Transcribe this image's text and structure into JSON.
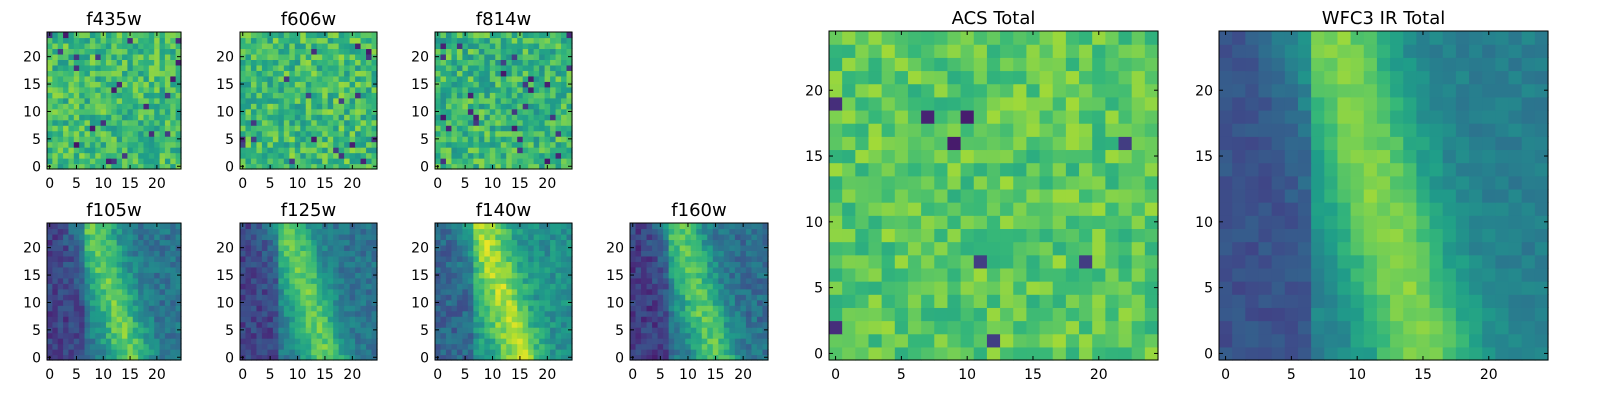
{
  "figure": {
    "colormap": "viridis",
    "background": "#ffffff"
  },
  "chart_data": [
    {
      "type": "heatmap",
      "title": "f435w",
      "grid": [
        25,
        25
      ],
      "xlim": [
        0,
        24
      ],
      "ylim": [
        0,
        24
      ],
      "xticks": [
        "0",
        "5",
        "10",
        "15",
        "20"
      ],
      "yticks": [
        "0",
        "5",
        "10",
        "15",
        "20"
      ],
      "pattern": "noise",
      "mean_level": 0.68,
      "noise": 0.16,
      "colormap": "viridis"
    },
    {
      "type": "heatmap",
      "title": "f606w",
      "grid": [
        25,
        25
      ],
      "xlim": [
        0,
        24
      ],
      "ylim": [
        0,
        24
      ],
      "xticks": [
        "0",
        "5",
        "10",
        "15",
        "20"
      ],
      "yticks": [
        "0",
        "5",
        "10",
        "15",
        "20"
      ],
      "pattern": "noise",
      "mean_level": 0.68,
      "noise": 0.17,
      "colormap": "viridis"
    },
    {
      "type": "heatmap",
      "title": "f814w",
      "grid": [
        25,
        25
      ],
      "xlim": [
        0,
        24
      ],
      "ylim": [
        0,
        24
      ],
      "xticks": [
        "0",
        "5",
        "10",
        "15",
        "20"
      ],
      "yticks": [
        "0",
        "5",
        "10",
        "15",
        "20"
      ],
      "pattern": "noise",
      "mean_level": 0.66,
      "noise": 0.17,
      "colormap": "viridis"
    },
    {
      "type": "heatmap",
      "title": "f105w",
      "grid": [
        25,
        25
      ],
      "xlim": [
        0,
        24
      ],
      "ylim": [
        0,
        24
      ],
      "xticks": [
        "0",
        "5",
        "10",
        "15",
        "20"
      ],
      "yticks": [
        "0",
        "5",
        "10",
        "15",
        "20"
      ],
      "pattern": "diagonal-ridge",
      "mean_level": 0.5,
      "noise": 0.1,
      "colormap": "viridis"
    },
    {
      "type": "heatmap",
      "title": "f125w",
      "grid": [
        25,
        25
      ],
      "xlim": [
        0,
        24
      ],
      "ylim": [
        0,
        24
      ],
      "xticks": [
        "0",
        "5",
        "10",
        "15",
        "20"
      ],
      "yticks": [
        "0",
        "5",
        "10",
        "15",
        "20"
      ],
      "pattern": "diagonal-ridge",
      "mean_level": 0.5,
      "noise": 0.09,
      "colormap": "viridis"
    },
    {
      "type": "heatmap",
      "title": "f140w",
      "grid": [
        25,
        25
      ],
      "xlim": [
        0,
        24
      ],
      "ylim": [
        0,
        24
      ],
      "xticks": [
        "0",
        "5",
        "10",
        "15",
        "20"
      ],
      "yticks": [
        "0",
        "5",
        "10",
        "15",
        "20"
      ],
      "pattern": "diagonal-ridge",
      "mean_level": 0.62,
      "noise": 0.1,
      "colormap": "viridis"
    },
    {
      "type": "heatmap",
      "title": "f160w",
      "grid": [
        25,
        25
      ],
      "xlim": [
        0,
        24
      ],
      "ylim": [
        0,
        24
      ],
      "xticks": [
        "0",
        "5",
        "10",
        "15",
        "20"
      ],
      "yticks": [
        "0",
        "5",
        "10",
        "15",
        "20"
      ],
      "pattern": "diagonal-ridge",
      "mean_level": 0.48,
      "noise": 0.1,
      "colormap": "viridis"
    },
    {
      "type": "heatmap",
      "title": "ACS Total",
      "grid": [
        25,
        25
      ],
      "xlim": [
        0,
        24
      ],
      "ylim": [
        0,
        24
      ],
      "xticks": [
        "0",
        "5",
        "10",
        "15",
        "20"
      ],
      "yticks": [
        "0",
        "5",
        "10",
        "15",
        "20"
      ],
      "pattern": "noise",
      "mean_level": 0.74,
      "noise": 0.12,
      "colormap": "viridis"
    },
    {
      "type": "heatmap",
      "title": "WFC3 IR Total",
      "grid": [
        25,
        25
      ],
      "xlim": [
        0,
        24
      ],
      "ylim": [
        0,
        24
      ],
      "xticks": [
        "0",
        "5",
        "10",
        "15",
        "20"
      ],
      "yticks": [
        "0",
        "5",
        "10",
        "15",
        "20"
      ],
      "pattern": "diagonal-ridge",
      "mean_level": 0.55,
      "noise": 0.05,
      "colormap": "viridis"
    }
  ]
}
